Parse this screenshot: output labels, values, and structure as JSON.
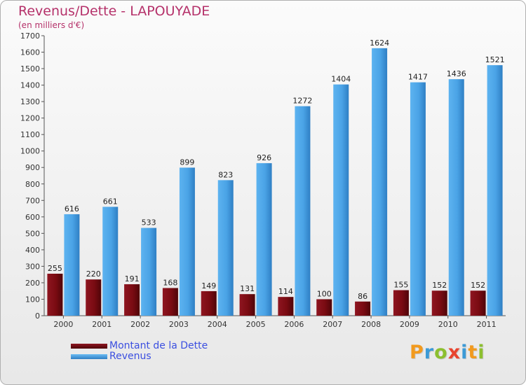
{
  "title": "Revenus/Dette - LAPOUYADE",
  "subtitle": "(en milliers d'€)",
  "colors": {
    "debt": "#7a0b12",
    "revenue": "#4aa3e6",
    "title": "#b5316a",
    "legend_text": "#3b4fe0"
  },
  "logo": {
    "text": "Proxiti",
    "letters": [
      {
        "ch": "P",
        "color": "#f29a1e"
      },
      {
        "ch": "r",
        "color": "#3c9ad6"
      },
      {
        "ch": "o",
        "color": "#8cbf2f"
      },
      {
        "ch": "x",
        "color": "#e8442f"
      },
      {
        "ch": "i",
        "color": "#3c9ad6"
      },
      {
        "ch": "t",
        "color": "#f29a1e"
      },
      {
        "ch": "i",
        "color": "#8cbf2f"
      }
    ]
  },
  "chart_data": {
    "type": "bar",
    "title": "Revenus/Dette - LAPOUYADE",
    "subtitle": "(en milliers d'€)",
    "xlabel": "",
    "ylabel": "",
    "ylim": [
      0,
      1700
    ],
    "yticks": [
      0,
      100,
      200,
      300,
      400,
      500,
      600,
      700,
      800,
      900,
      1000,
      1100,
      1200,
      1300,
      1400,
      1500,
      1600,
      1700
    ],
    "grid": false,
    "legend_position": "bottom-left",
    "categories": [
      "2000",
      "2001",
      "2002",
      "2003",
      "2004",
      "2005",
      "2006",
      "2007",
      "2008",
      "2009",
      "2010",
      "2011"
    ],
    "series": [
      {
        "name": "Montant de la Dette",
        "values": [
          255,
          220,
          191,
          168,
          149,
          131,
          114,
          100,
          86,
          155,
          152,
          152
        ]
      },
      {
        "name": "Revenus",
        "values": [
          616,
          661,
          533,
          899,
          823,
          926,
          1272,
          1404,
          1624,
          1417,
          1436,
          1521
        ]
      }
    ]
  }
}
